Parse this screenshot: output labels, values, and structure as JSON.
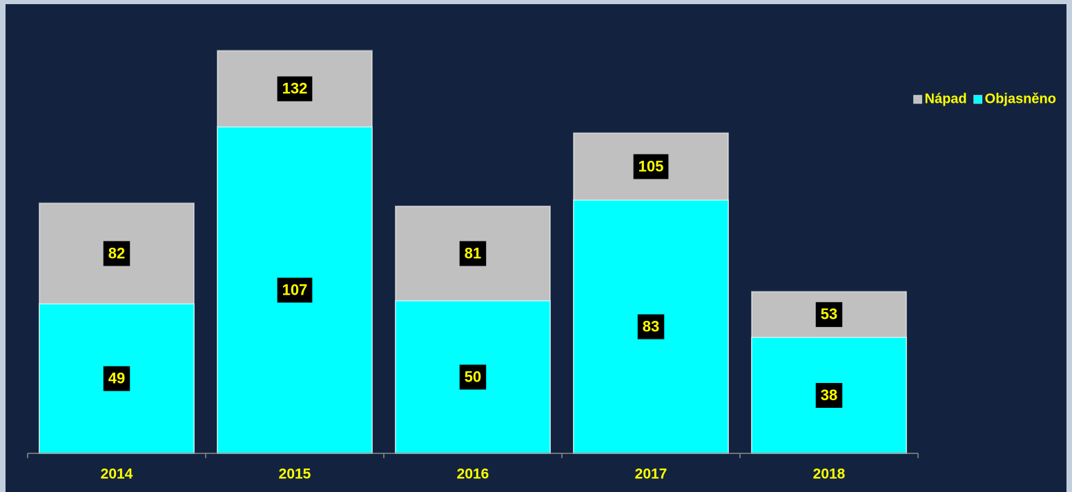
{
  "chart_data": {
    "type": "bar",
    "categories": [
      "2014",
      "2015",
      "2016",
      "2017",
      "2018"
    ],
    "series": [
      {
        "name": "Nápad",
        "color": "#c0c0c0",
        "values": [
          82,
          132,
          81,
          105,
          53
        ]
      },
      {
        "name": "Objasněno",
        "color": "#00ffff",
        "values": [
          49,
          107,
          50,
          83,
          38
        ]
      }
    ],
    "ylim": [
      0,
      145
    ],
    "legend": "top-right"
  }
}
